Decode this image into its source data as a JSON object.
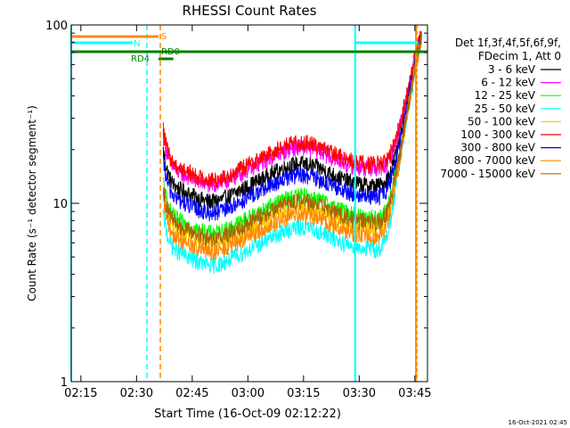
{
  "chart_data": {
    "type": "line",
    "title": "RHESSI Count Rates",
    "xlabel": "Start Time (16-Oct-09 02:12:22)",
    "ylabel": "Count Rate (s⁻¹ detector segment⁻¹)",
    "yscale": "log",
    "ylim": [
      1,
      100
    ],
    "x_unit": "minutes since 02:12:22",
    "xlim": [
      0,
      96
    ],
    "x_ticks": [
      {
        "t": 2.6,
        "label": "02:15"
      },
      {
        "t": 17.6,
        "label": "02:30"
      },
      {
        "t": 32.6,
        "label": "02:45"
      },
      {
        "t": 47.6,
        "label": "03:00"
      },
      {
        "t": 62.6,
        "label": "03:15"
      },
      {
        "t": 77.6,
        "label": "03:30"
      },
      {
        "t": 92.6,
        "label": "03:45"
      }
    ],
    "y_ticks": [
      {
        "v": 1,
        "label": "1"
      },
      {
        "v": 10,
        "label": "10"
      },
      {
        "v": 100,
        "label": "100"
      }
    ],
    "legend": {
      "position": "right",
      "header": [
        "Det 1f,3f,4f,5f,6f,9f,",
        "FDecim 1, Att 0"
      ]
    },
    "series": [
      {
        "name": "3 - 6 keV",
        "color": "#000000",
        "base": 12.5,
        "bump": 1.8,
        "spike": 1.35
      },
      {
        "name": "6 - 12 keV",
        "color": "#ff00ff",
        "base": 15.5,
        "bump": 2.0,
        "spike": 1.3
      },
      {
        "name": "12 - 25 keV",
        "color": "#00ff00",
        "base": 8.3,
        "bump": 2.0,
        "spike": 1.35
      },
      {
        "name": "25 - 50 keV",
        "color": "#00ffff",
        "base": 5.5,
        "bump": 2.3,
        "spike": 1.5
      },
      {
        "name": "50 - 100 keV",
        "color": "#ffcc00",
        "base": 7.2,
        "bump": 1.8,
        "spike": 1.5
      },
      {
        "name": "100 - 300 keV",
        "color": "#ff0000",
        "base": 16.5,
        "bump": 2.0,
        "spike": 1.25
      },
      {
        "name": "300 - 800 keV",
        "color": "#0000ff",
        "base": 10.8,
        "bump": 1.8,
        "spike": 1.4
      },
      {
        "name": "800 - 7000 keV",
        "color": "#ff8800",
        "base": 6.5,
        "bump": 1.9,
        "spike": 1.5
      },
      {
        "name": "7000 - 15000 keV",
        "color": "#aa6600",
        "base": 7.8,
        "bump": 1.8,
        "spike": 1.4
      }
    ],
    "data_window": {
      "start": 24.8,
      "end": 94.4,
      "peak": 82
    },
    "annotations": [
      {
        "id": "S",
        "text": "S",
        "color": "#ff8800"
      },
      {
        "id": "N",
        "text": "N",
        "color": "#00ffff"
      },
      {
        "id": "RD4",
        "text": "RD4",
        "color": "#008000"
      },
      {
        "id": "RD0",
        "text": "RD0",
        "color": "#008000"
      }
    ],
    "timestamp": "16-Oct-2021 02:45"
  }
}
